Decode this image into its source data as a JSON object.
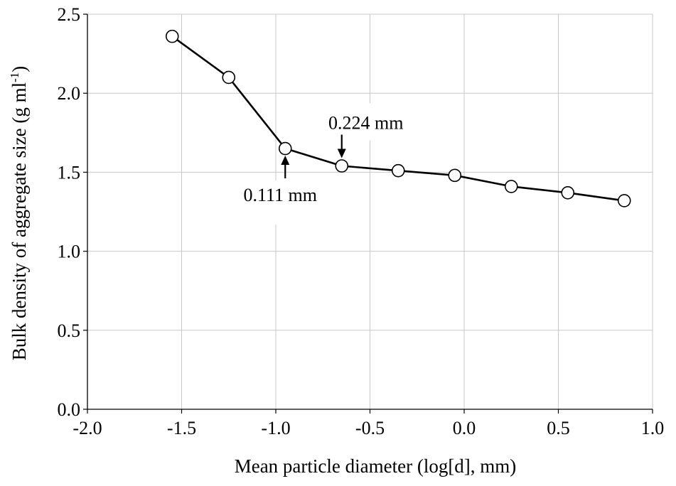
{
  "chart_data": {
    "type": "line",
    "xlabel": "Mean particle diameter (log[d], mm)",
    "ylabel": "Bulk density of aggregate size (g ml",
    "ylabel_sup": "-1",
    "ylabel_suffix": ")",
    "xlim": [
      -2.0,
      1.0
    ],
    "ylim": [
      0.0,
      2.5
    ],
    "xticks": [
      "-2.0",
      "-1.5",
      "-1.0",
      "-0.5",
      "0.0",
      "0.5",
      "1.0"
    ],
    "yticks": [
      "0.0",
      "0.5",
      "1.0",
      "1.5",
      "2.0",
      "2.5"
    ],
    "grid": true,
    "series": [
      {
        "x": [
          -1.55,
          -1.25,
          -0.95,
          -0.65,
          -0.35,
          -0.05,
          0.25,
          0.55,
          0.85
        ],
        "y": [
          2.36,
          2.1,
          1.65,
          1.54,
          1.51,
          1.48,
          1.41,
          1.37,
          1.32
        ]
      }
    ],
    "annotations": [
      {
        "text": "0.111 mm",
        "x": -0.95,
        "y": 1.65,
        "arrow": "up-from-below"
      },
      {
        "text": "0.224 mm",
        "x": -0.65,
        "y": 1.54,
        "arrow": "down-from-above"
      }
    ]
  }
}
